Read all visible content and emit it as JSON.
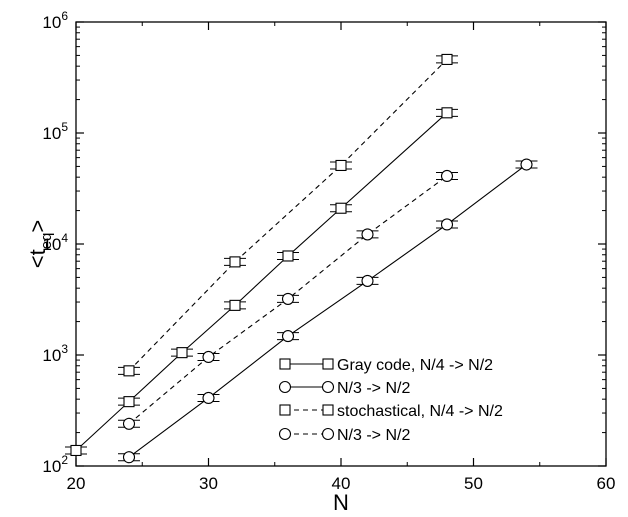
{
  "chart_data": {
    "type": "scatter",
    "xlabel": "N",
    "ylabel_main": "<t",
    "ylabel_sub": "eq",
    "ylabel_close": ">",
    "xlim": [
      20,
      60
    ],
    "ylim": [
      100,
      1000000
    ],
    "yscale": "log",
    "x_ticks": [
      20,
      30,
      40,
      50,
      60
    ],
    "x_tick_labels": [
      "20",
      "30",
      "40",
      "50",
      "60"
    ],
    "y_ticks": [
      100,
      1000,
      10000,
      100000,
      1000000
    ],
    "y_tick_base": "10",
    "y_tick_exponents": [
      "2",
      "3",
      "4",
      "5",
      "6"
    ],
    "grid": false,
    "legend_position": "bottom-right",
    "series": [
      {
        "name": "Gray code, N/4 -> N/2",
        "marker": "square",
        "line": "solid",
        "x": [
          20,
          24,
          28,
          32,
          36,
          40,
          48
        ],
        "y": [
          138,
          380,
          1050,
          2800,
          7800,
          21000,
          152000
        ]
      },
      {
        "name": "N/3 -> N/2",
        "marker": "circle",
        "line": "solid",
        "x": [
          24,
          30,
          36,
          42,
          48,
          54
        ],
        "y": [
          120,
          410,
          1480,
          4650,
          15000,
          52000
        ]
      },
      {
        "name": "stochastical, N/4 -> N/2",
        "marker": "square",
        "line": "dashed",
        "x": [
          24,
          32,
          40,
          48
        ],
        "y": [
          720,
          6900,
          51000,
          460000
        ]
      },
      {
        "name": "N/3 -> N/2",
        "marker": "circle",
        "line": "dashed",
        "x": [
          24,
          30,
          36,
          42,
          48
        ],
        "y": [
          240,
          960,
          3200,
          12200,
          41000
        ]
      }
    ]
  }
}
